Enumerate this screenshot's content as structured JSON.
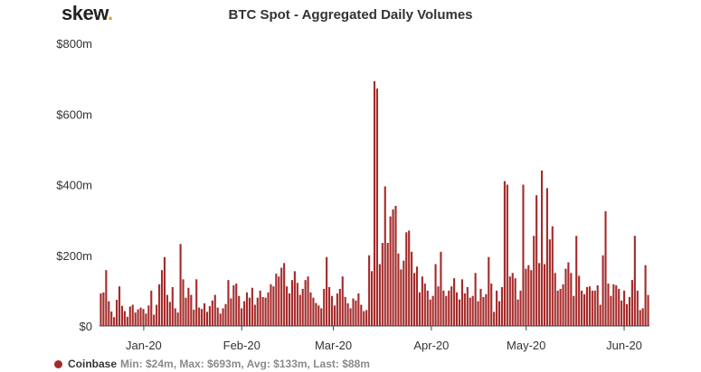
{
  "branding": {
    "logo_text": "skew",
    "logo_dot": ".",
    "logo_dot_color": "#e8a21c"
  },
  "chart_data": {
    "type": "bar",
    "title": "BTC Spot - Aggregated Daily Volumes",
    "x_range": [
      "2020-01-01",
      "2020-06-22"
    ],
    "x_ticks": [
      "Jan-20",
      "Feb-20",
      "Mar-20",
      "Apr-20",
      "May-20",
      "Jun-20"
    ],
    "y_ticks": [
      "$0",
      "$200m",
      "$400m",
      "$600m",
      "$800m"
    ],
    "ylim": [
      0,
      800
    ],
    "yunit": "m",
    "grid": false,
    "legend_position": "bottom-left",
    "series": [
      {
        "name": "Coinbase",
        "color": "#a52a2a",
        "stats": "Min: $24m, Max: $693m, Avg: $133m, Last: $88m",
        "values": [
          92,
          95,
          158,
          70,
          41,
          25,
          74,
          112,
          57,
          42,
          26,
          55,
          60,
          38,
          47,
          52,
          48,
          35,
          58,
          100,
          32,
          60,
          118,
          158,
          195,
          88,
          68,
          110,
          50,
          38,
          232,
          132,
          80,
          108,
          88,
          46,
          132,
          52,
          48,
          64,
          40,
          56,
          72,
          88,
          52,
          35,
          50,
          62,
          130,
          78,
          115,
          120,
          85,
          50,
          70,
          95,
          80,
          108,
          60,
          80,
          100,
          82,
          80,
          95,
          118,
          112,
          148,
          140,
          165,
          178,
          112,
          92,
          130,
          155,
          122,
          88,
          105,
          130,
          140,
          95,
          80,
          65,
          58,
          50,
          105,
          195,
          110,
          85,
          58,
          92,
          105,
          140,
          82,
          64,
          50,
          78,
          72,
          92,
          60,
          42,
          45,
          200,
          155,
          693,
          672,
          175,
          235,
          395,
          235,
          310,
          330,
          340,
          205,
          160,
          185,
          265,
          270,
          210,
          150,
          168,
          95,
          140,
          120,
          100,
          75,
          85,
          175,
          112,
          210,
          100,
          85,
          100,
          112,
          135,
          95,
          75,
          132,
          92,
          110,
          80,
          85,
          150,
          70,
          105,
          82,
          90,
          195,
          120,
          40,
          100,
          70,
          110,
          410,
          400,
          140,
          150,
          135,
          75,
          100,
          400,
          162,
          172,
          158,
          255,
          370,
          178,
          440,
          175,
          390,
          245,
          282,
          150,
          100,
          105,
          118,
          162,
          180,
          150,
          85,
          255,
          142,
          100,
          90,
          110,
          112,
          100,
          100,
          115,
          60,
          200,
          325,
          120,
          85,
          118,
          115,
          105,
          72,
          100,
          62,
          82,
          130,
          255,
          100,
          45,
          50,
          172,
          88
        ]
      }
    ]
  }
}
